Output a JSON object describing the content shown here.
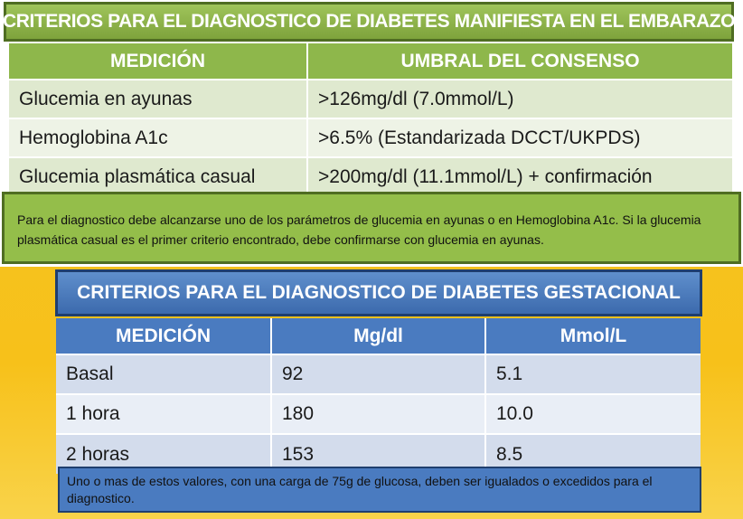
{
  "top": {
    "title": "CRITERIOS PARA EL DIAGNOSTICO DE DIABETES MANIFIESTA EN EL EMBARAZO",
    "headers": [
      "MEDICIÓN",
      "UMBRAL DEL CONSENSO"
    ],
    "rows": [
      [
        "Glucemia en ayunas",
        ">126mg/dl (7.0mmol/L)"
      ],
      [
        "Hemoglobina A1c",
        ">6.5% (Estandarizada DCCT/UKPDS)"
      ],
      [
        "Glucemia plasmática casual",
        ">200mg/dl (11.1mmol/L) + confirmación"
      ]
    ],
    "note": "Para el diagnostico debe alcanzarse uno de los parámetros de glucemia en ayunas o en Hemoglobina A1c. Si la glucemia plasmática casual es el primer criterio encontrado, debe confirmarse con glucemia en ayunas.",
    "colors": {
      "title_bg": "#8eb74b",
      "row_light": "#eef3e6",
      "row_dark": "#dfe9cf"
    }
  },
  "bottom": {
    "title": "CRITERIOS PARA EL DIAGNOSTICO DE DIABETES GESTACIONAL",
    "headers": [
      "MEDICIÓN",
      "Mg/dl",
      "Mmol/L"
    ],
    "rows": [
      [
        "Basal",
        "92",
        "5.1"
      ],
      [
        "1 hora",
        "180",
        "10.0"
      ],
      [
        "2 horas",
        "153",
        "8.5"
      ]
    ],
    "note": "Uno o mas de estos valores, con una carga de 75g de glucosa, deben ser igualados o excedidos para el diagnostico.",
    "colors": {
      "title_bg": "#4a7bc0",
      "row_light": "#e9eef6",
      "row_dark": "#d3dcec"
    }
  },
  "background_color": "#f6c21f"
}
